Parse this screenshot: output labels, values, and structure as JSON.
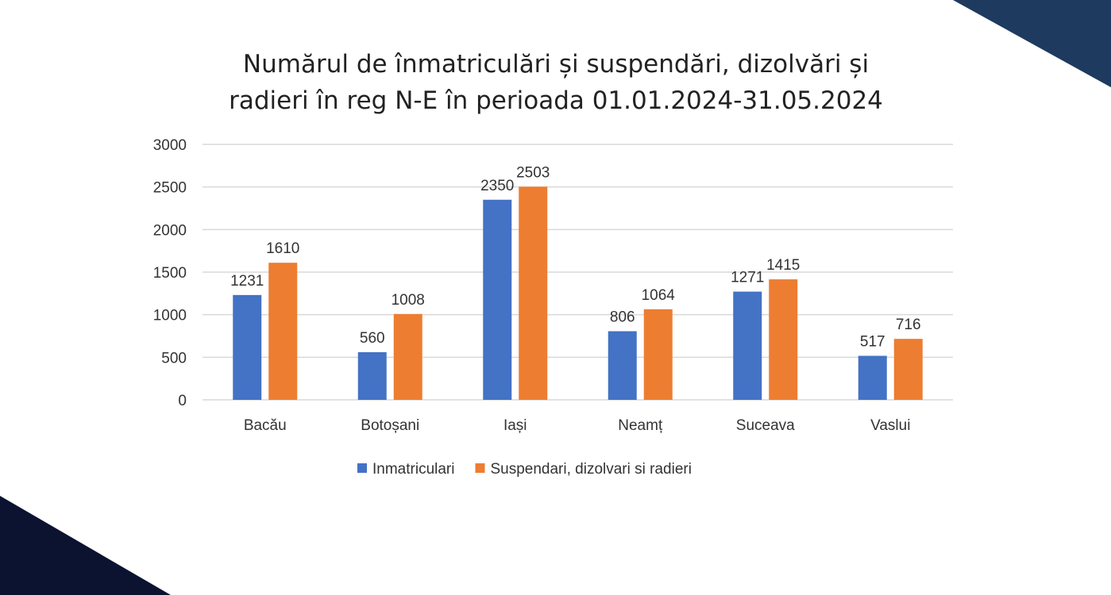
{
  "colors": {
    "background": "#ffffff",
    "corner_top_right": "#1e3a5f",
    "corner_bottom_left": "#0b1330",
    "gridline": "#d9d9d9",
    "text": "#333333"
  },
  "chart_data": {
    "type": "bar",
    "title_lines": [
      "Numărul de înmatriculări și suspendări, dizolvări și",
      "radieri în reg N-E în perioada 01.01.2024-31.05.2024"
    ],
    "categories": [
      "Bacău",
      "Botoșani",
      "Iași",
      "Neamț",
      "Suceava",
      "Vaslui"
    ],
    "series": [
      {
        "name": "Inmatriculari",
        "color": "#4472c4",
        "values": [
          1231,
          560,
          2350,
          806,
          1271,
          517
        ]
      },
      {
        "name": "Suspendari, dizolvari si radieri",
        "color": "#ed7d31",
        "values": [
          1610,
          1008,
          2503,
          1064,
          1415,
          716
        ]
      }
    ],
    "ylim": [
      0,
      3000
    ],
    "yticks": [
      0,
      500,
      1000,
      1500,
      2000,
      2500,
      3000
    ],
    "grid": true,
    "legend": "bottom",
    "data_labels": true
  }
}
